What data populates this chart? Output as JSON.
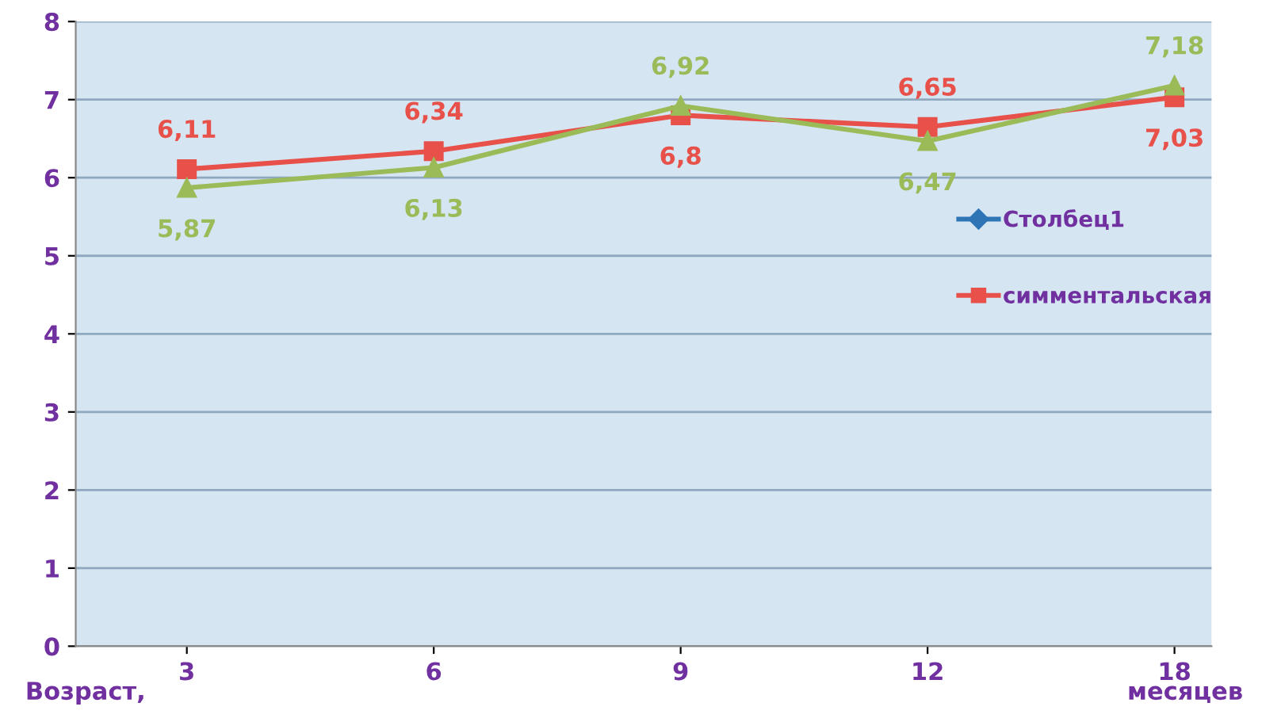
{
  "chart_data": {
    "type": "line",
    "categories": [
      "3",
      "6",
      "9",
      "12",
      "18"
    ],
    "series": [
      {
        "name": "Столбец1",
        "color": "#2e75b6",
        "marker": "diamond",
        "values": [
          null,
          null,
          null,
          null,
          null
        ]
      },
      {
        "name": "симментальская",
        "color": "#e8504a",
        "marker": "square",
        "values": [
          6.11,
          6.34,
          6.8,
          6.65,
          7.03
        ],
        "value_labels": [
          "6,11",
          "6,34",
          "6,8",
          "6,65",
          "7,03"
        ]
      },
      {
        "color": "#9bbb59",
        "marker": "triangle",
        "values": [
          5.87,
          6.13,
          6.92,
          6.47,
          7.18
        ],
        "value_labels": [
          "5,87",
          "6,13",
          "6,92",
          "6,47",
          "7,18"
        ]
      }
    ],
    "ylim": [
      0,
      8
    ],
    "yticks": [
      0,
      1,
      2,
      3,
      4,
      5,
      6,
      7,
      8
    ],
    "grid": "y",
    "legend": "right",
    "annotations": [
      "Возраст,",
      "месяцев"
    ]
  }
}
